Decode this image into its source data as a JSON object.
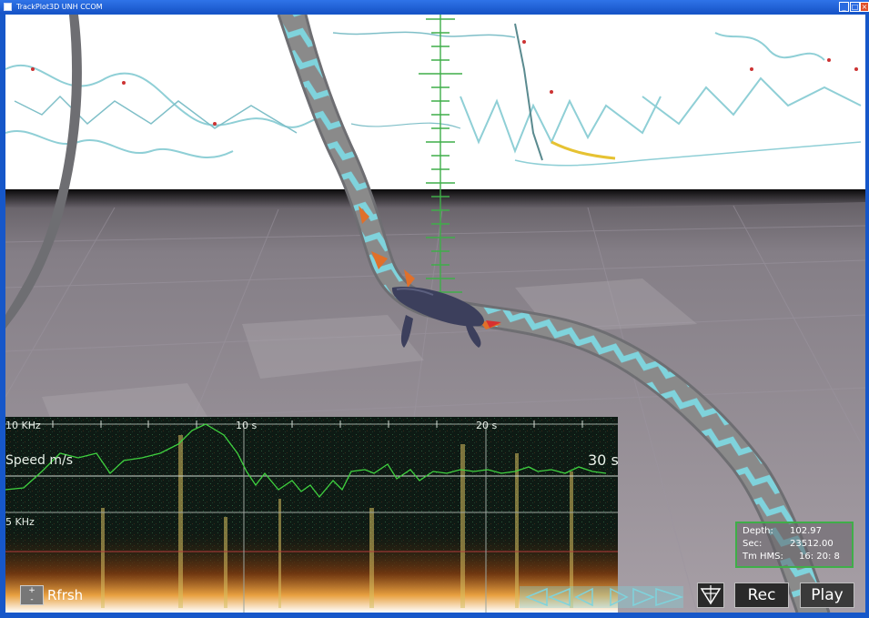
{
  "window": {
    "title": "TrackPlot3D UNH CCOM"
  },
  "spectrogram": {
    "freq_labels": [
      "10 KHz",
      "5 KHz"
    ],
    "time_labels": [
      "10 s",
      "20 s",
      "30 s"
    ],
    "speed_label": "Speed m/s"
  },
  "info": {
    "depth_label": "Depth:",
    "depth_value": "102.97",
    "sec_label": "Sec:",
    "sec_value": "23512.00",
    "time_label": "Tm HMS:",
    "time_value": "16: 20: 8"
  },
  "controls": {
    "refresh_label": "Rfrsh",
    "plus": "+",
    "minus": "-",
    "rec_label": "Rec",
    "play_label": "Play"
  },
  "colors": {
    "ribbon_cyan": "#7fd3dc",
    "ribbon_gray": "#8a8a8a",
    "crosshair": "#3fae49",
    "sky": "#ffffff",
    "floor": "#8d878e",
    "speed_line": "#3fd13f"
  }
}
